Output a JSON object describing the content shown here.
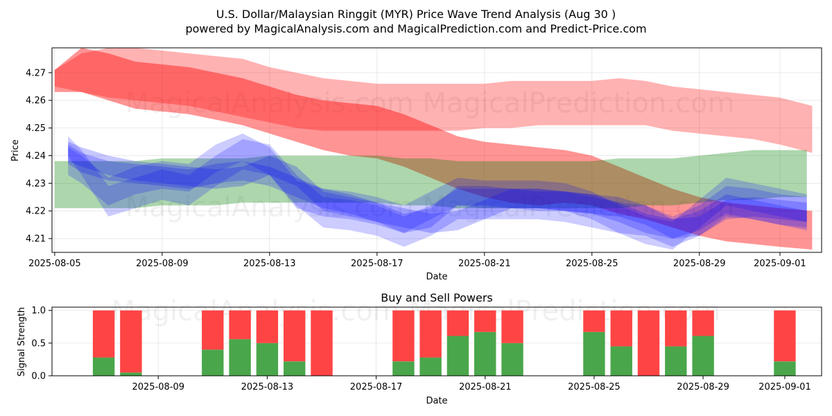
{
  "title_line1": "U.S. Dollar/Malaysian Ringgit (MYR) Price Wave Trend Analysis (Aug 30 )",
  "title_line2": "powered by MagicalAnalysis.com and MagicalPrediction.com and Predict-Price.com",
  "watermark": "MagicalAnalysis.com   MagicalPrediction.com",
  "colors": {
    "red": "#ff0000",
    "blue": "#0000ff",
    "green": "#008000",
    "buy": "#4aa64a",
    "sell": "#ff4444"
  },
  "chart_data": [
    {
      "type": "area",
      "title": "",
      "xlabel": "Date",
      "ylabel": "Price",
      "xlim": [
        "2025-08-05",
        "2025-09-02"
      ],
      "ylim": [
        4.205,
        4.279
      ],
      "x_ticks": [
        "2025-08-05",
        "2025-08-09",
        "2025-08-13",
        "2025-08-17",
        "2025-08-21",
        "2025-08-25",
        "2025-08-29",
        "2025-09-01"
      ],
      "y_ticks": [
        "4.21",
        "4.22",
        "4.23",
        "4.24",
        "4.25",
        "4.26",
        "4.27"
      ],
      "series": [
        {
          "name": "red_band_upper",
          "color": "red",
          "opacity": 0.3,
          "x": [
            0,
            1,
            2,
            3,
            4,
            5,
            6,
            7,
            8,
            9,
            10,
            11,
            12,
            13,
            14,
            15,
            16,
            17,
            18,
            19,
            20,
            21,
            22,
            23,
            24,
            25,
            26,
            27,
            28.2
          ],
          "upper": [
            4.271,
            4.277,
            4.279,
            4.279,
            4.278,
            4.277,
            4.276,
            4.275,
            4.272,
            4.27,
            4.268,
            4.267,
            4.266,
            4.266,
            4.266,
            4.266,
            4.266,
            4.267,
            4.267,
            4.267,
            4.267,
            4.268,
            4.267,
            4.265,
            4.264,
            4.263,
            4.262,
            4.261,
            4.258
          ],
          "lower": [
            4.265,
            4.263,
            4.261,
            4.26,
            4.259,
            4.258,
            4.256,
            4.254,
            4.252,
            4.25,
            4.249,
            4.249,
            4.249,
            4.249,
            4.249,
            4.249,
            4.25,
            4.25,
            4.251,
            4.251,
            4.251,
            4.251,
            4.251,
            4.249,
            4.248,
            4.247,
            4.246,
            4.244,
            4.241
          ]
        },
        {
          "name": "red_band_main",
          "color": "red",
          "opacity": 0.42,
          "x": [
            0,
            1,
            2,
            3,
            4,
            5,
            6,
            7,
            8,
            9,
            10,
            11,
            12,
            13,
            14,
            15,
            16,
            17,
            18,
            19,
            20,
            21,
            22,
            23,
            24,
            25,
            26,
            27,
            28.2
          ],
          "upper": [
            4.271,
            4.279,
            4.277,
            4.274,
            4.273,
            4.272,
            4.27,
            4.268,
            4.265,
            4.262,
            4.26,
            4.259,
            4.258,
            4.255,
            4.251,
            4.247,
            4.245,
            4.244,
            4.243,
            4.242,
            4.24,
            4.236,
            4.232,
            4.228,
            4.225,
            4.223,
            4.222,
            4.221,
            4.22
          ],
          "lower": [
            4.263,
            4.263,
            4.26,
            4.257,
            4.256,
            4.255,
            4.253,
            4.251,
            4.248,
            4.245,
            4.242,
            4.24,
            4.239,
            4.236,
            4.232,
            4.228,
            4.225,
            4.223,
            4.222,
            4.223,
            4.222,
            4.219,
            4.217,
            4.214,
            4.211,
            4.209,
            4.208,
            4.207,
            4.206
          ]
        },
        {
          "name": "green_band",
          "color": "green",
          "opacity": 0.32,
          "x": [
            0,
            1,
            2,
            3,
            4,
            5,
            6,
            7,
            8,
            9,
            10,
            11,
            12,
            13,
            14,
            15,
            16,
            17,
            18,
            19,
            20,
            21,
            22,
            23,
            24,
            25,
            26,
            27,
            28
          ],
          "upper": [
            4.238,
            4.238,
            4.238,
            4.238,
            4.239,
            4.239,
            4.239,
            4.239,
            4.24,
            4.24,
            4.24,
            4.24,
            4.24,
            4.239,
            4.239,
            4.238,
            4.238,
            4.238,
            4.238,
            4.238,
            4.238,
            4.239,
            4.239,
            4.239,
            4.24,
            4.241,
            4.242,
            4.242,
            4.242
          ],
          "lower": [
            4.221,
            4.221,
            4.221,
            4.221,
            4.222,
            4.222,
            4.222,
            4.223,
            4.223,
            4.223,
            4.223,
            4.223,
            4.223,
            4.222,
            4.222,
            4.221,
            4.221,
            4.221,
            4.221,
            4.221,
            4.221,
            4.221,
            4.222,
            4.222,
            4.223,
            4.224,
            4.224,
            4.225,
            4.225
          ]
        },
        {
          "name": "blue_band_1",
          "color": "blue",
          "opacity": 0.22,
          "x": [
            0.5,
            1,
            2,
            3,
            4,
            5,
            6,
            7,
            8,
            9,
            10,
            11,
            12,
            13,
            14,
            15,
            16,
            17,
            18,
            19,
            20,
            21,
            22,
            23,
            24,
            25,
            26,
            27,
            28
          ],
          "upper": [
            4.245,
            4.243,
            4.24,
            4.238,
            4.237,
            4.236,
            4.235,
            4.236,
            4.24,
            4.236,
            4.227,
            4.225,
            4.223,
            4.221,
            4.219,
            4.22,
            4.224,
            4.228,
            4.228,
            4.227,
            4.226,
            4.225,
            4.222,
            4.217,
            4.218,
            4.224,
            4.225,
            4.224,
            4.223
          ],
          "lower": [
            4.238,
            4.236,
            4.233,
            4.231,
            4.23,
            4.229,
            4.228,
            4.229,
            4.233,
            4.229,
            4.22,
            4.218,
            4.216,
            4.214,
            4.212,
            4.213,
            4.217,
            4.221,
            4.221,
            4.22,
            4.219,
            4.218,
            4.215,
            4.21,
            4.211,
            4.217,
            4.218,
            4.217,
            4.216
          ]
        },
        {
          "name": "blue_band_2",
          "color": "blue",
          "opacity": 0.2,
          "x": [
            0.5,
            1,
            2,
            3,
            4,
            5,
            6,
            7,
            8,
            9,
            10,
            11,
            12,
            13,
            14,
            15,
            16,
            17,
            18,
            19,
            20,
            21,
            22,
            23,
            24,
            25,
            26,
            27,
            28
          ],
          "upper": [
            4.247,
            4.242,
            4.229,
            4.232,
            4.235,
            4.233,
            4.24,
            4.246,
            4.244,
            4.233,
            4.225,
            4.224,
            4.222,
            4.218,
            4.222,
            4.228,
            4.228,
            4.228,
            4.228,
            4.227,
            4.225,
            4.223,
            4.222,
            4.218,
            4.222,
            4.229,
            4.228,
            4.226,
            4.225
          ],
          "lower": [
            4.24,
            4.233,
            4.218,
            4.221,
            4.224,
            4.222,
            4.229,
            4.235,
            4.233,
            4.222,
            4.214,
            4.213,
            4.211,
            4.207,
            4.211,
            4.217,
            4.217,
            4.217,
            4.217,
            4.216,
            4.214,
            4.212,
            4.211,
            4.207,
            4.211,
            4.218,
            4.217,
            4.215,
            4.214
          ]
        },
        {
          "name": "blue_band_3",
          "color": "blue",
          "opacity": 0.2,
          "x": [
            0.5,
            1,
            2,
            3,
            4,
            5,
            6,
            7,
            8,
            9,
            10,
            11,
            12,
            13,
            14,
            15,
            16,
            17,
            18,
            19,
            20,
            21,
            22,
            23,
            24,
            25,
            26,
            27,
            28
          ],
          "upper": [
            4.243,
            4.24,
            4.232,
            4.236,
            4.238,
            4.237,
            4.244,
            4.248,
            4.243,
            4.231,
            4.228,
            4.227,
            4.225,
            4.222,
            4.227,
            4.232,
            4.231,
            4.231,
            4.231,
            4.23,
            4.227,
            4.222,
            4.218,
            4.216,
            4.224,
            4.232,
            4.23,
            4.228,
            4.226
          ],
          "lower": [
            4.233,
            4.23,
            4.222,
            4.226,
            4.228,
            4.227,
            4.234,
            4.238,
            4.233,
            4.221,
            4.218,
            4.217,
            4.215,
            4.212,
            4.217,
            4.222,
            4.221,
            4.221,
            4.221,
            4.22,
            4.217,
            4.212,
            4.208,
            4.206,
            4.214,
            4.222,
            4.22,
            4.218,
            4.216
          ]
        },
        {
          "name": "blue_band_4",
          "color": "blue",
          "opacity": 0.22,
          "x": [
            0.5,
            1,
            2,
            3,
            4,
            5,
            6,
            7,
            8,
            9,
            10,
            11,
            12,
            13,
            14,
            15,
            16,
            17,
            18,
            19,
            20,
            21,
            22,
            23,
            24,
            25,
            26,
            27,
            28
          ],
          "upper": [
            4.244,
            4.241,
            4.238,
            4.237,
            4.236,
            4.235,
            4.237,
            4.238,
            4.236,
            4.232,
            4.228,
            4.226,
            4.223,
            4.219,
            4.221,
            4.229,
            4.229,
            4.228,
            4.227,
            4.227,
            4.226,
            4.223,
            4.219,
            4.217,
            4.22,
            4.226,
            4.224,
            4.222,
            4.22
          ],
          "lower": [
            4.237,
            4.234,
            4.231,
            4.23,
            4.229,
            4.228,
            4.23,
            4.231,
            4.229,
            4.225,
            4.221,
            4.219,
            4.216,
            4.212,
            4.214,
            4.222,
            4.222,
            4.221,
            4.22,
            4.22,
            4.219,
            4.216,
            4.212,
            4.21,
            4.213,
            4.219,
            4.217,
            4.215,
            4.213
          ]
        }
      ]
    },
    {
      "type": "bar",
      "title": "Buy and Sell Powers",
      "xlabel": "Date",
      "ylabel": "Signal Strength",
      "ylim": [
        0,
        1.05
      ],
      "y_ticks": [
        "0.0",
        "0.5",
        "1.0"
      ],
      "x_ticks": [
        "2025-08-09",
        "2025-08-13",
        "2025-08-17",
        "2025-08-21",
        "2025-08-25",
        "2025-08-29",
        "2025-09-01"
      ],
      "dates": [
        "2025-08-07",
        "2025-08-08",
        "2025-08-11",
        "2025-08-12",
        "2025-08-13",
        "2025-08-14",
        "2025-08-15",
        "2025-08-18",
        "2025-08-19",
        "2025-08-20",
        "2025-08-21",
        "2025-08-22",
        "2025-08-25",
        "2025-08-26",
        "2025-08-27",
        "2025-08-28",
        "2025-08-29",
        "2025-09-01"
      ],
      "series": [
        {
          "name": "Buy",
          "color": "buy",
          "values": [
            0.28,
            0.05,
            0.4,
            0.56,
            0.5,
            0.22,
            0.0,
            0.22,
            0.28,
            0.61,
            0.67,
            0.5,
            0.67,
            0.45,
            0.0,
            0.45,
            0.61,
            0.22
          ]
        },
        {
          "name": "Sell",
          "color": "sell",
          "values": [
            0.72,
            0.95,
            0.6,
            0.44,
            0.5,
            0.78,
            1.0,
            0.78,
            0.72,
            0.39,
            0.33,
            0.5,
            0.33,
            0.55,
            1.0,
            0.55,
            0.39,
            0.78
          ]
        }
      ]
    }
  ]
}
